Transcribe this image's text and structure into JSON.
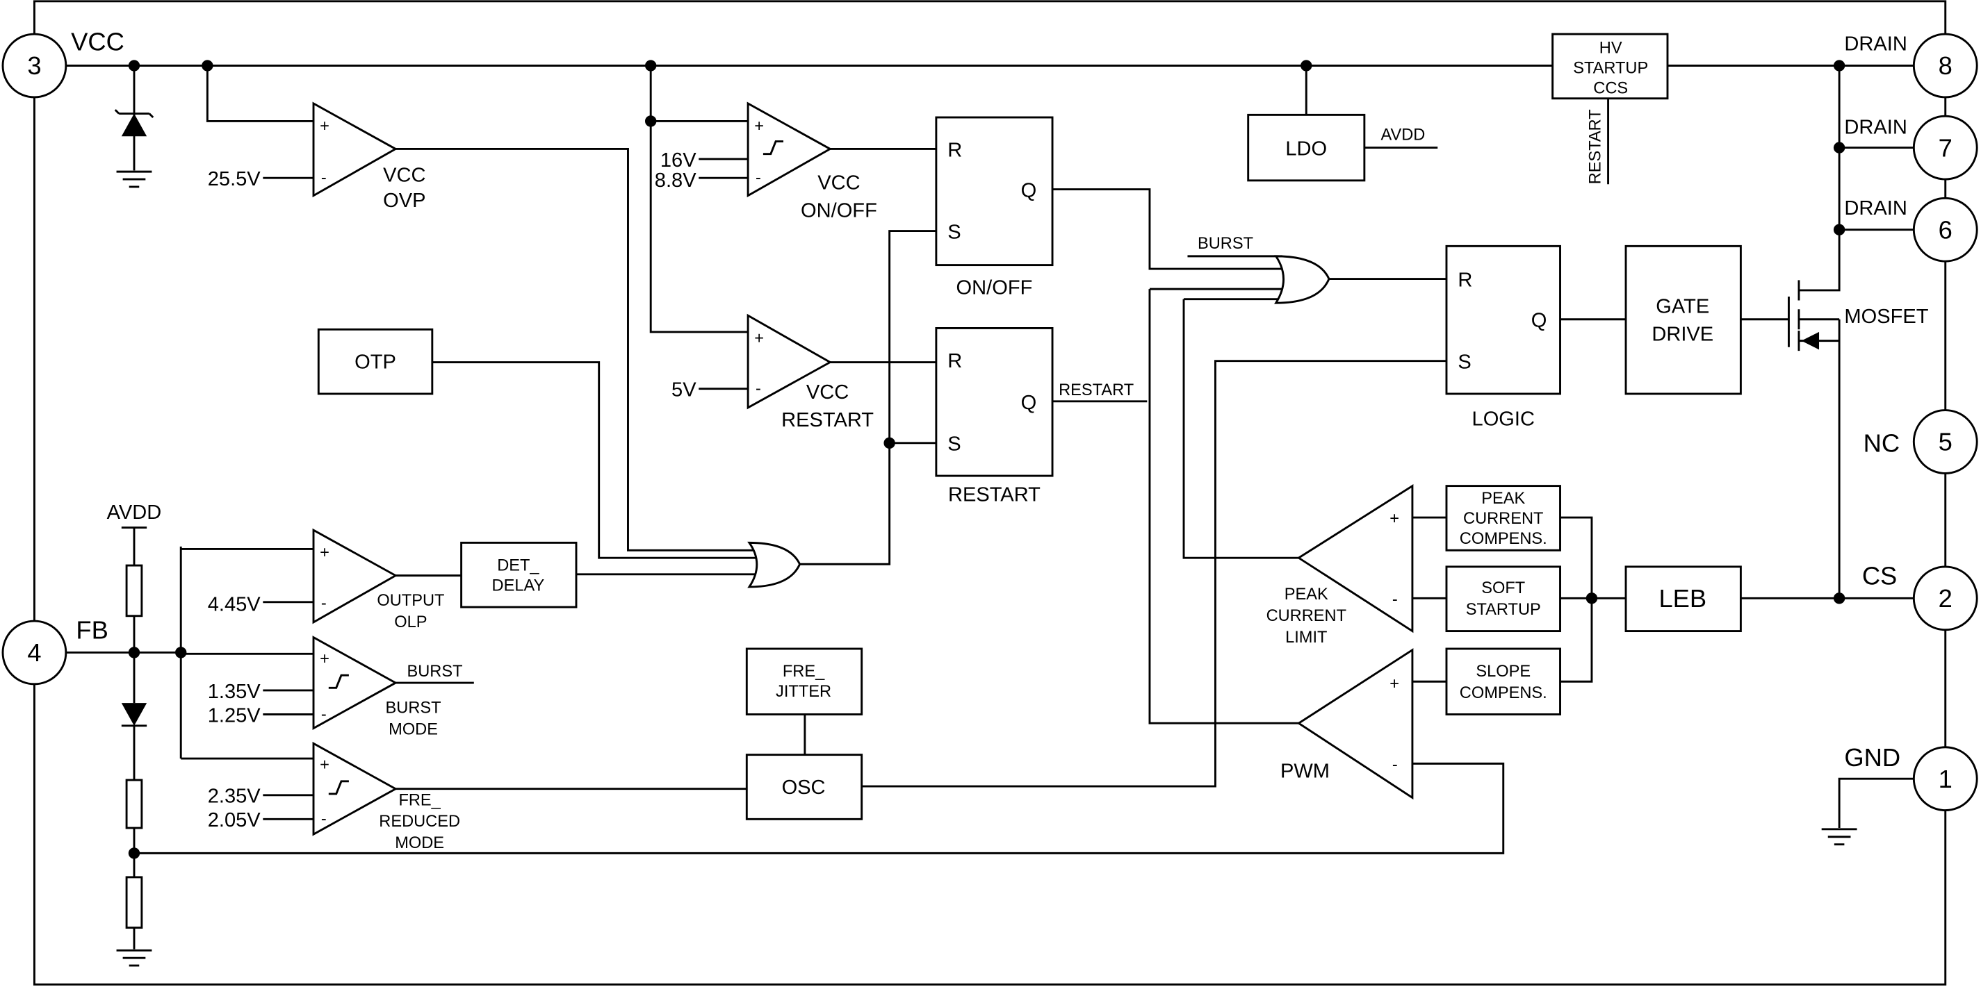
{
  "pins": [
    {
      "num": "3",
      "label": "VCC"
    },
    {
      "num": "4",
      "label": "FB"
    },
    {
      "num": "8",
      "label": "DRAIN"
    },
    {
      "num": "7",
      "label": "DRAIN"
    },
    {
      "num": "6",
      "label": "DRAIN"
    },
    {
      "num": "5",
      "label": "NC"
    },
    {
      "num": "2",
      "label": "CS"
    },
    {
      "num": "1",
      "label": "GND"
    }
  ],
  "blocks": {
    "hv": [
      "HV",
      "STARTUP",
      "CCS"
    ],
    "ldo": "LDO",
    "avdd": "AVDD",
    "restart_v": "RESTART",
    "otp": "OTP",
    "det": [
      "DET_",
      "DELAY"
    ],
    "jitter": [
      "FRE_",
      "JITTER"
    ],
    "osc": "OSC",
    "gate": [
      "GATE",
      "DRIVE"
    ],
    "leb": "LEB",
    "pcc": [
      "PEAK",
      "CURRENT",
      "COMPENS."
    ],
    "soft": [
      "SOFT",
      "STARTUP"
    ],
    "slope": [
      "SLOPE",
      "COMPENS."
    ],
    "mosfet": "MOSFET"
  },
  "comparators": {
    "ovp": {
      "label": [
        "VCC",
        "OVP"
      ],
      "ref": "25.5V"
    },
    "onoff": {
      "label": [
        "VCC",
        "ON/OFF"
      ],
      "ref_hi": "16V",
      "ref_lo": "8.8V"
    },
    "restart": {
      "label": [
        "VCC",
        "RESTART"
      ],
      "ref": "5V"
    },
    "olp": {
      "label": [
        "OUTPUT",
        "OLP"
      ],
      "ref": "4.45V"
    },
    "burst": {
      "label": [
        "BURST",
        "MODE"
      ],
      "ref_hi": "1.35V",
      "ref_lo": "1.25V",
      "out": "BURST"
    },
    "fre": {
      "label": [
        "FRE_",
        "REDUCED",
        "MODE"
      ],
      "ref_hi": "2.35V",
      "ref_lo": "2.05V"
    },
    "peak": {
      "label": [
        "PEAK",
        "CURRENT",
        "LIMIT"
      ]
    },
    "pwm": {
      "label": [
        "PWM"
      ]
    }
  },
  "flipflops": {
    "onoff": {
      "label": "ON/OFF",
      "r": "R",
      "s": "S",
      "q": "Q"
    },
    "restart": {
      "label": "RESTART",
      "r": "R",
      "s": "S",
      "q": "Q",
      "out": "RESTART"
    },
    "logic": {
      "label": "LOGIC",
      "r": "R",
      "s": "S",
      "q": "Q"
    }
  },
  "signals": {
    "burst_in": "BURST",
    "avdd_top": "AVDD",
    "plus": "+",
    "minus": "-"
  }
}
